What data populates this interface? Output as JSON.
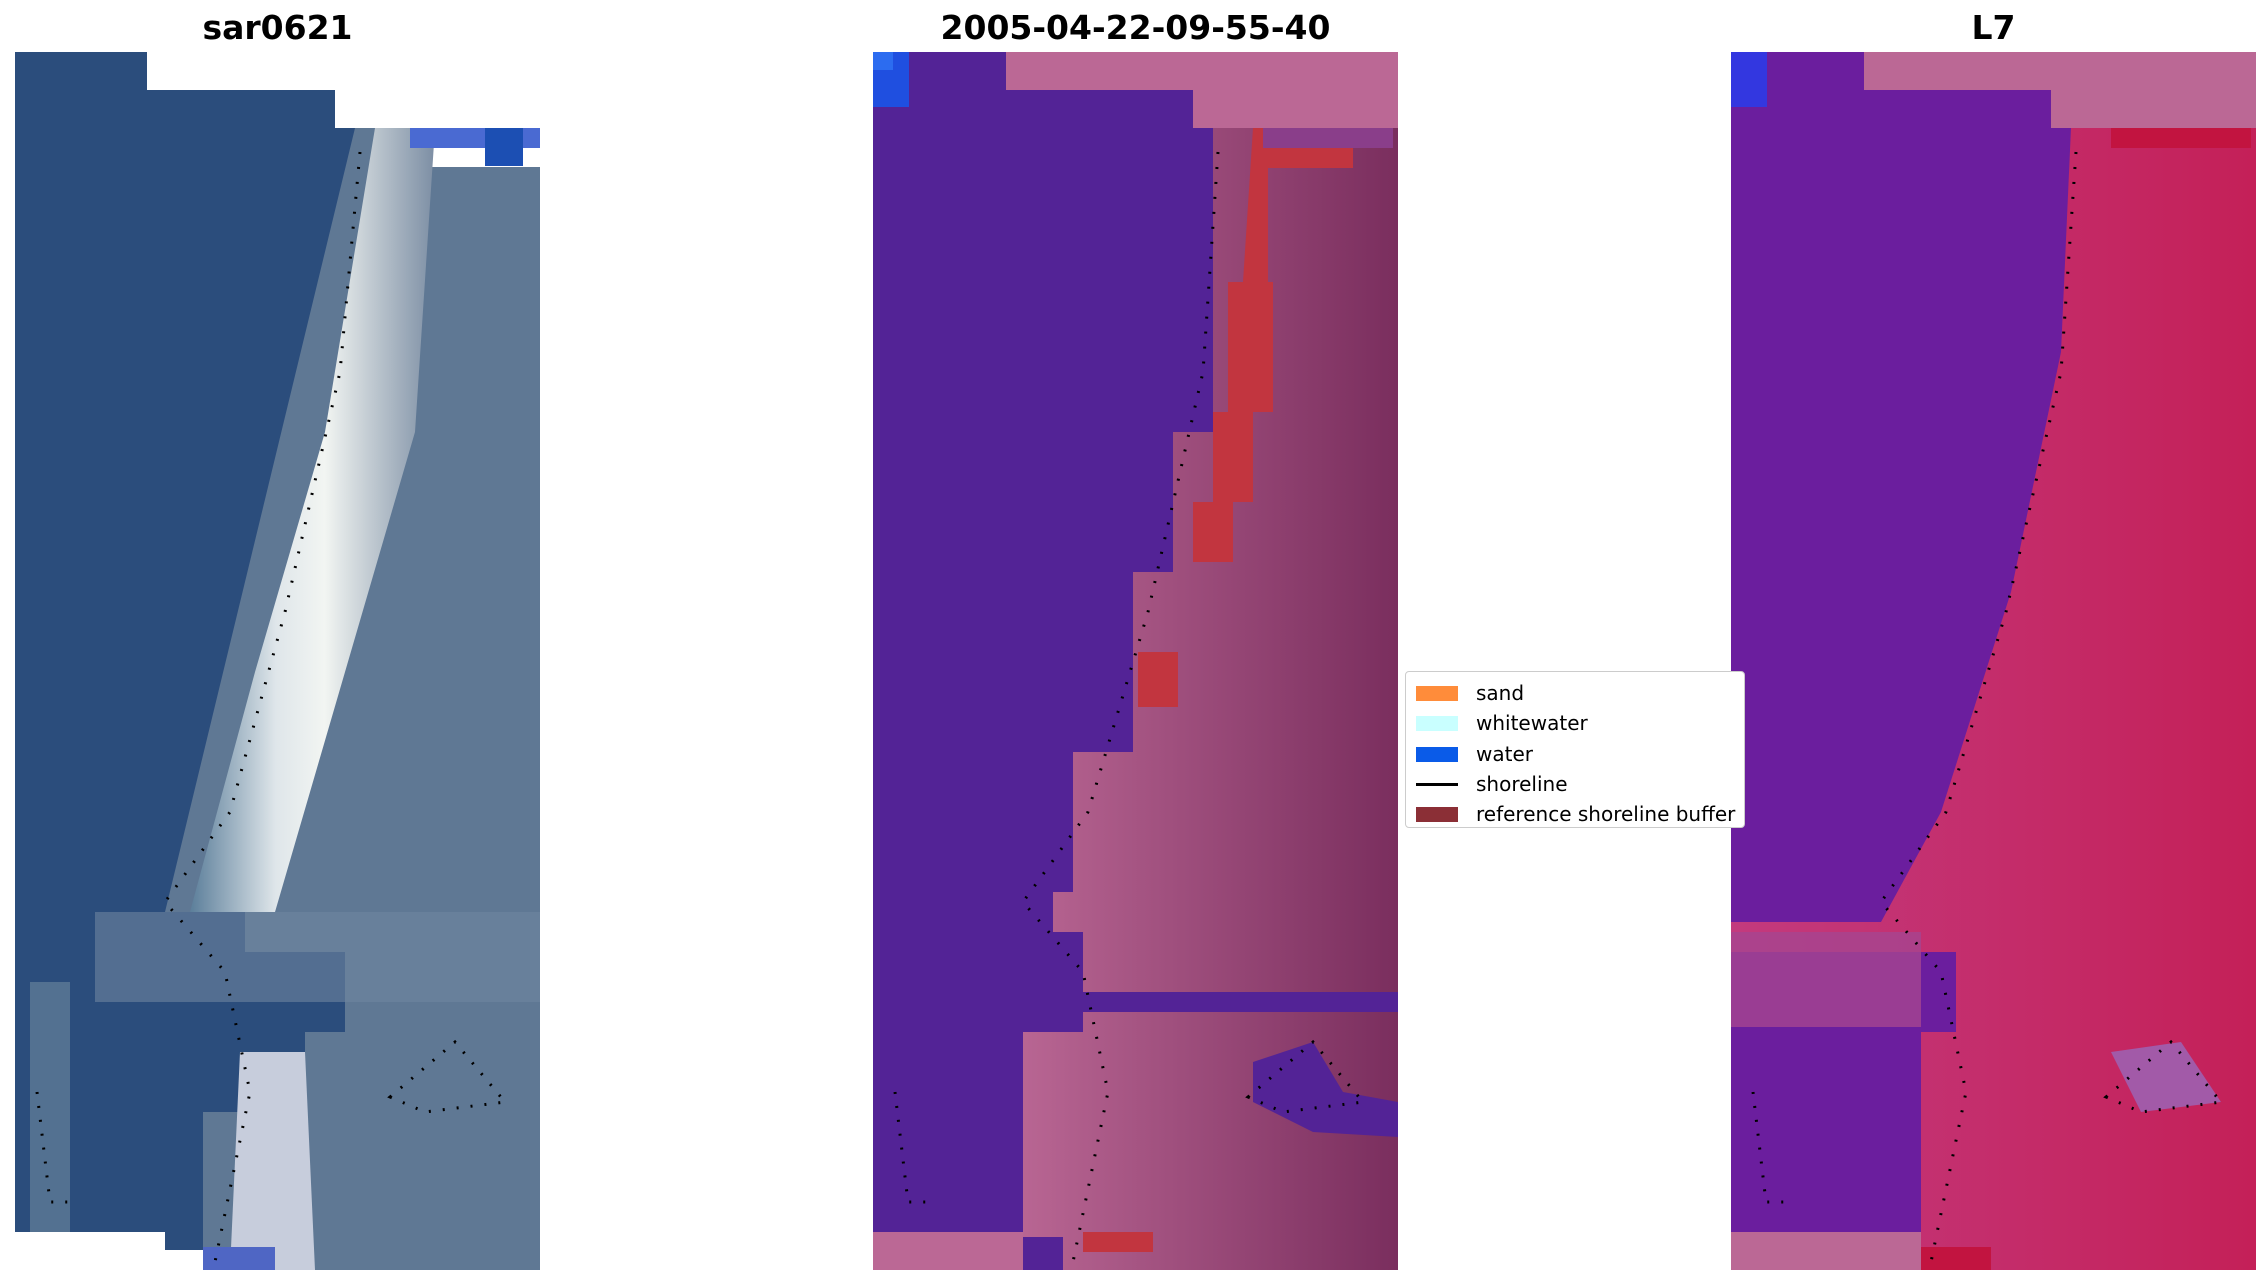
{
  "panels": [
    {
      "title": "sar0621"
    },
    {
      "title": "2005-04-22-09-55-40"
    },
    {
      "title": "L7"
    }
  ],
  "legend": {
    "items": [
      {
        "label": "sand",
        "color": "#ff8c3a",
        "kind": "patch"
      },
      {
        "label": "whitewater",
        "color": "#c9ffff",
        "kind": "patch"
      },
      {
        "label": "water",
        "color": "#0a5be8",
        "kind": "patch"
      },
      {
        "label": "shoreline",
        "color": "#000000",
        "kind": "line"
      },
      {
        "label": "reference shoreline buffer",
        "color": "#8b2f36",
        "kind": "patch"
      }
    ]
  },
  "colors": {
    "rgb_water": "#2b4d7c",
    "rgb_beach": "#e8ecef",
    "class_water": "#532396",
    "class_land": "#bb6895",
    "class_buffer": "#c2353f",
    "nir_water": "#6b1e9e",
    "nir_land": "#c42058"
  }
}
